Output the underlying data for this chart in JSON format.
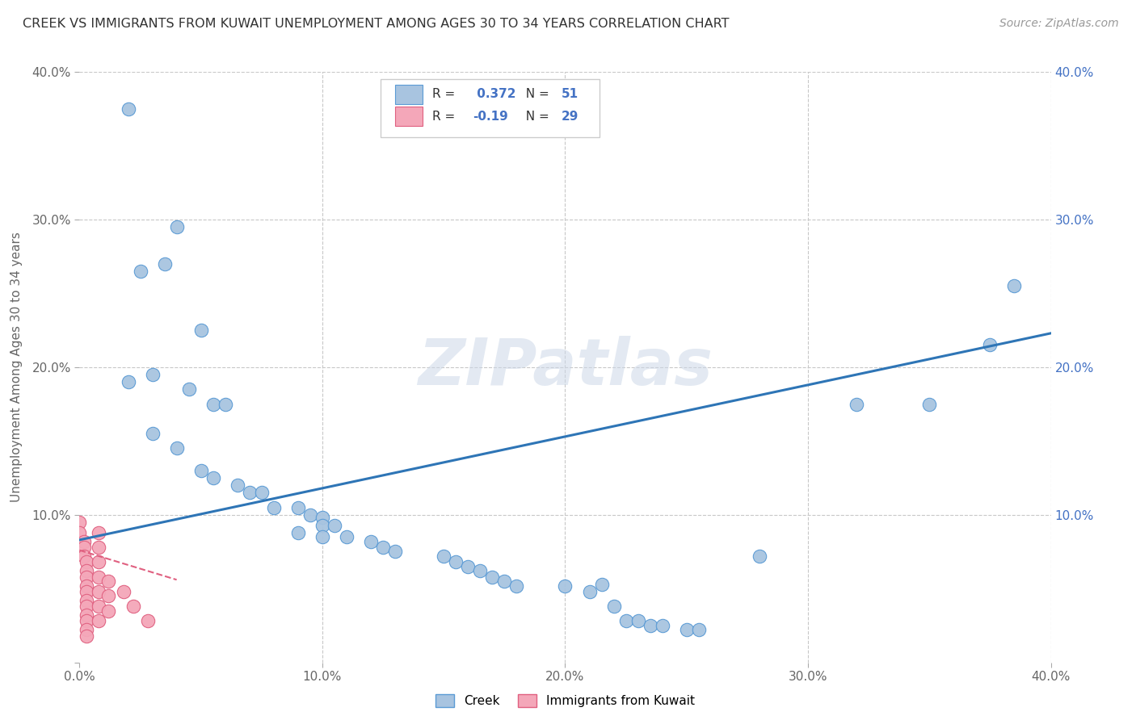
{
  "title": "CREEK VS IMMIGRANTS FROM KUWAIT UNEMPLOYMENT AMONG AGES 30 TO 34 YEARS CORRELATION CHART",
  "source": "Source: ZipAtlas.com",
  "ylabel": "Unemployment Among Ages 30 to 34 years",
  "xlim": [
    0.0,
    0.4
  ],
  "ylim": [
    0.0,
    0.4
  ],
  "xtick_vals": [
    0.0,
    0.1,
    0.2,
    0.3,
    0.4
  ],
  "ytick_vals": [
    0.0,
    0.1,
    0.2,
    0.3,
    0.4
  ],
  "creek_color": "#a8c4e0",
  "creek_edge_color": "#5b9bd5",
  "kuwait_color": "#f4a7b9",
  "kuwait_edge_color": "#e06080",
  "creek_R": 0.372,
  "creek_N": 51,
  "kuwait_R": -0.19,
  "kuwait_N": 29,
  "creek_line_color": "#2e75b6",
  "kuwait_line_color": "#e06080",
  "watermark": "ZIPatlas",
  "background_color": "#ffffff",
  "grid_color": "#c8c8c8",
  "creek_line_x": [
    0.0,
    0.4
  ],
  "creek_line_y": [
    0.083,
    0.223
  ],
  "kuwait_line_x": [
    0.0,
    0.04
  ],
  "kuwait_line_y": [
    0.076,
    0.056
  ],
  "creek_points": [
    [
      0.02,
      0.375
    ],
    [
      0.04,
      0.295
    ],
    [
      0.035,
      0.27
    ],
    [
      0.025,
      0.265
    ],
    [
      0.03,
      0.195
    ],
    [
      0.02,
      0.19
    ],
    [
      0.05,
      0.225
    ],
    [
      0.045,
      0.185
    ],
    [
      0.055,
      0.175
    ],
    [
      0.06,
      0.175
    ],
    [
      0.03,
      0.155
    ],
    [
      0.04,
      0.145
    ],
    [
      0.05,
      0.13
    ],
    [
      0.055,
      0.125
    ],
    [
      0.065,
      0.12
    ],
    [
      0.07,
      0.115
    ],
    [
      0.075,
      0.115
    ],
    [
      0.08,
      0.105
    ],
    [
      0.09,
      0.105
    ],
    [
      0.095,
      0.1
    ],
    [
      0.1,
      0.098
    ],
    [
      0.1,
      0.093
    ],
    [
      0.105,
      0.093
    ],
    [
      0.09,
      0.088
    ],
    [
      0.1,
      0.085
    ],
    [
      0.11,
      0.085
    ],
    [
      0.12,
      0.082
    ],
    [
      0.125,
      0.078
    ],
    [
      0.13,
      0.075
    ],
    [
      0.15,
      0.072
    ],
    [
      0.155,
      0.068
    ],
    [
      0.16,
      0.065
    ],
    [
      0.165,
      0.062
    ],
    [
      0.17,
      0.058
    ],
    [
      0.175,
      0.055
    ],
    [
      0.18,
      0.052
    ],
    [
      0.2,
      0.052
    ],
    [
      0.21,
      0.048
    ],
    [
      0.215,
      0.053
    ],
    [
      0.22,
      0.038
    ],
    [
      0.225,
      0.028
    ],
    [
      0.23,
      0.028
    ],
    [
      0.235,
      0.025
    ],
    [
      0.24,
      0.025
    ],
    [
      0.25,
      0.022
    ],
    [
      0.255,
      0.022
    ],
    [
      0.28,
      0.072
    ],
    [
      0.32,
      0.175
    ],
    [
      0.35,
      0.175
    ],
    [
      0.375,
      0.215
    ],
    [
      0.385,
      0.255
    ]
  ],
  "kuwait_points": [
    [
      0.0,
      0.095
    ],
    [
      0.0,
      0.088
    ],
    [
      0.002,
      0.082
    ],
    [
      0.002,
      0.078
    ],
    [
      0.002,
      0.072
    ],
    [
      0.003,
      0.068
    ],
    [
      0.003,
      0.062
    ],
    [
      0.003,
      0.058
    ],
    [
      0.003,
      0.052
    ],
    [
      0.003,
      0.048
    ],
    [
      0.003,
      0.042
    ],
    [
      0.003,
      0.038
    ],
    [
      0.003,
      0.032
    ],
    [
      0.003,
      0.028
    ],
    [
      0.003,
      0.022
    ],
    [
      0.003,
      0.018
    ],
    [
      0.008,
      0.088
    ],
    [
      0.008,
      0.078
    ],
    [
      0.008,
      0.068
    ],
    [
      0.008,
      0.058
    ],
    [
      0.008,
      0.048
    ],
    [
      0.008,
      0.038
    ],
    [
      0.008,
      0.028
    ],
    [
      0.012,
      0.055
    ],
    [
      0.012,
      0.045
    ],
    [
      0.012,
      0.035
    ],
    [
      0.018,
      0.048
    ],
    [
      0.022,
      0.038
    ],
    [
      0.028,
      0.028
    ]
  ]
}
